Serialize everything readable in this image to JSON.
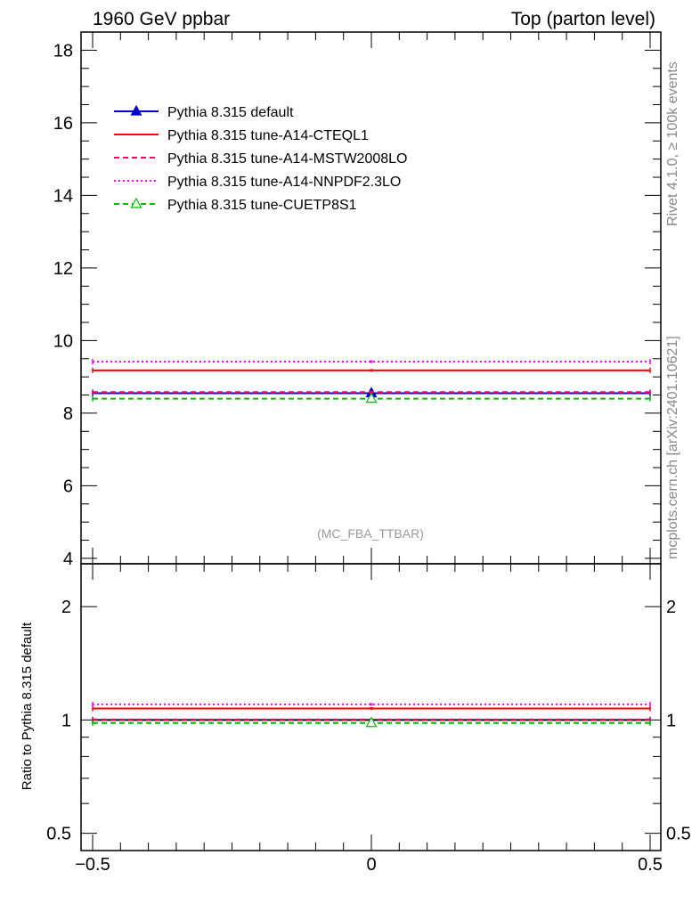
{
  "header": {
    "left": "1960 GeV ppbar",
    "right": "Top (parton level)"
  },
  "side_labels": {
    "rivet": "Rivet 4.1.0, ≥ 100k events",
    "mcplots": "mcplots.cern.ch [arXiv:2401.10621]"
  },
  "annotation": "(MC_FBA_TTBAR)",
  "ratio_ylabel": "Ratio to Pythia 8.315 default",
  "chart_data": [
    {
      "type": "line",
      "panel": "main",
      "title": "",
      "xlabel": "",
      "ylabel": "",
      "xlim": [
        -0.5,
        0.5
      ],
      "ylim": [
        3.9,
        18.5
      ],
      "x_ticks": [
        "−0.5",
        "0",
        "0.5"
      ],
      "y_ticks": [
        "4",
        "6",
        "8",
        "10",
        "12",
        "14",
        "16",
        "18"
      ],
      "legend_placement": "top-left",
      "series": [
        {
          "name": "Pythia 8.315 default",
          "x": [
            -0.5,
            0.5
          ],
          "y": [
            8.55,
            8.55
          ],
          "color": "#0000cc",
          "style": "solid",
          "marker": "filled-triangle"
        },
        {
          "name": "Pythia 8.315 tune-A14-CTEQL1",
          "x": [
            -0.5,
            0.5
          ],
          "y": [
            9.18,
            9.18
          ],
          "color": "#ff0000",
          "style": "solid",
          "marker": "point"
        },
        {
          "name": "Pythia 8.315 tune-A14-MSTW2008LO",
          "x": [
            -0.5,
            0.5
          ],
          "y": [
            8.58,
            8.58
          ],
          "color": "#ff0066",
          "style": "dashed",
          "marker": "point"
        },
        {
          "name": "Pythia 8.315 tune-A14-NNPDF2.3LO",
          "x": [
            -0.5,
            0.5
          ],
          "y": [
            9.42,
            9.42
          ],
          "color": "#ff00ff",
          "style": "dotted",
          "marker": "point"
        },
        {
          "name": "Pythia 8.315 tune-CUETP8S1",
          "x": [
            -0.5,
            0.5
          ],
          "y": [
            8.4,
            8.4
          ],
          "color": "#00bb00",
          "style": "dashed",
          "marker": "open-triangle"
        }
      ]
    },
    {
      "type": "line",
      "panel": "ratio",
      "title": "",
      "xlabel": "",
      "ylabel": "Ratio to Pythia 8.315 default",
      "xlim": [
        -0.5,
        0.5
      ],
      "ylim": [
        0.45,
        2.6
      ],
      "log_y": true,
      "x_ticks": [
        "−0.5",
        "0",
        "0.5"
      ],
      "y_ticks": [
        "0.5",
        "1",
        "2"
      ],
      "series": [
        {
          "name": "Pythia 8.315 default",
          "x": [
            -0.5,
            0.5
          ],
          "y": [
            1.0,
            1.0
          ],
          "color": "#000000",
          "style": "solid"
        },
        {
          "name": "Pythia 8.315 tune-A14-CTEQL1",
          "x": [
            -0.5,
            0.5
          ],
          "y": [
            1.073,
            1.073
          ],
          "color": "#ff0000",
          "style": "solid"
        },
        {
          "name": "Pythia 8.315 tune-A14-MSTW2008LO",
          "x": [
            -0.5,
            0.5
          ],
          "y": [
            1.003,
            1.003
          ],
          "color": "#ff0066",
          "style": "dashed"
        },
        {
          "name": "Pythia 8.315 tune-A14-NNPDF2.3LO",
          "x": [
            -0.5,
            0.5
          ],
          "y": [
            1.1,
            1.1
          ],
          "color": "#ff00ff",
          "style": "dotted"
        },
        {
          "name": "Pythia 8.315 tune-CUETP8S1",
          "x": [
            -0.5,
            0.5
          ],
          "y": [
            0.982,
            0.982
          ],
          "color": "#00bb00",
          "style": "dashed"
        }
      ]
    }
  ]
}
